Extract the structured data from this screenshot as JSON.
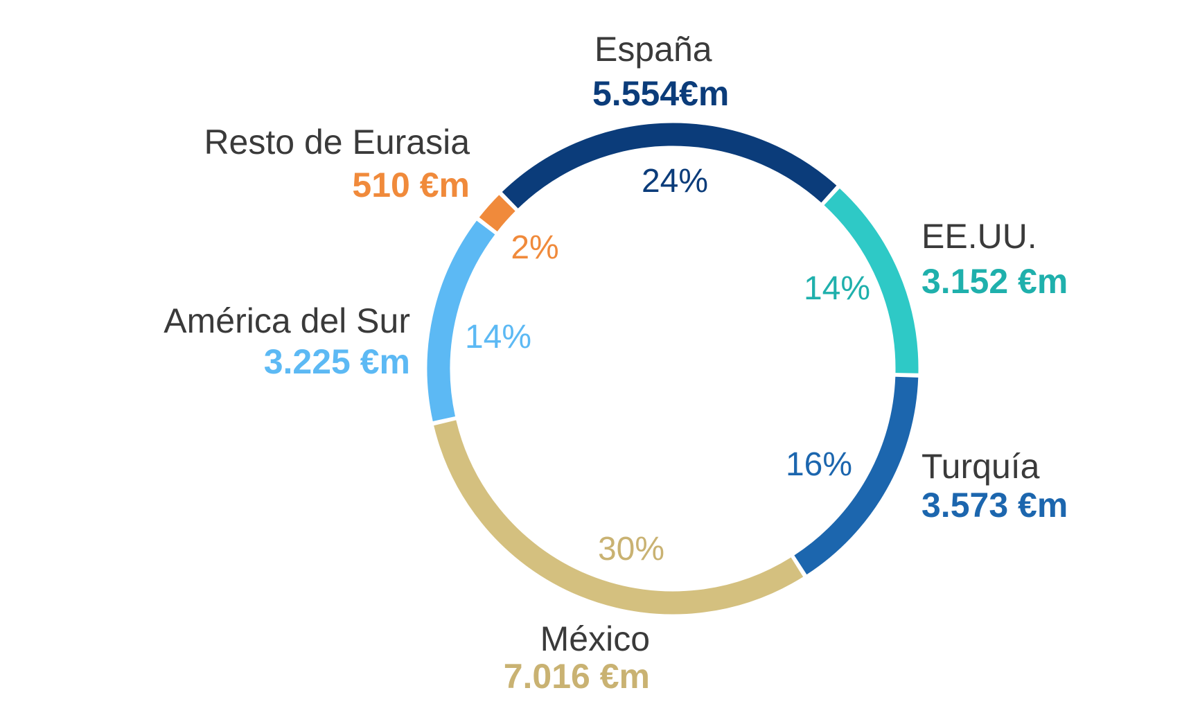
{
  "chart_data": {
    "type": "pie",
    "donut": true,
    "unit": "€m",
    "slices": [
      {
        "name": "España",
        "value": 5554,
        "value_label": "5.554€m",
        "percent_label": "24%",
        "color": "#0b3c7a"
      },
      {
        "name": "EE.UU.",
        "value": 3152,
        "value_label": "3.152 €m",
        "percent_label": "14%",
        "color": "#2ec9c6"
      },
      {
        "name": "Turquía",
        "value": 3573,
        "value_label": "3.573 €m",
        "percent_label": "16%",
        "color": "#1c66ae"
      },
      {
        "name": "México",
        "value": 7016,
        "value_label": "7.016 €m",
        "percent_label": "30%",
        "color": "#d4c07f"
      },
      {
        "name": "América del Sur",
        "value": 3225,
        "value_label": "3.225 €m",
        "percent_label": "14%",
        "color": "#5cb9f4"
      },
      {
        "name": "Resto de Eurasia",
        "value": 510,
        "value_label": "510 €m",
        "percent_label": "2%",
        "color": "#f08a3b"
      }
    ]
  }
}
